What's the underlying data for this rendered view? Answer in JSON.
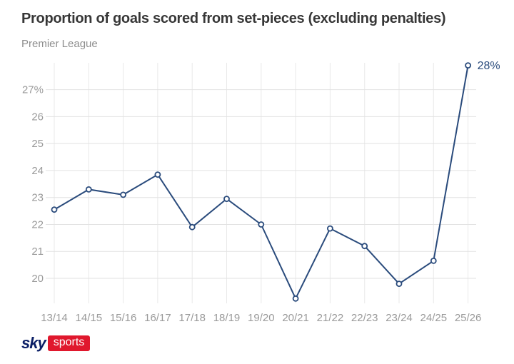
{
  "header": {
    "title": "Proportion of goals scored from set-pieces (excluding penalties)",
    "subtitle": "Premier League"
  },
  "chart_data": {
    "type": "line",
    "title": "Proportion of goals scored from set-pieces (excluding penalties)",
    "subtitle": "Premier League",
    "categories": [
      "13/14",
      "14/15",
      "15/16",
      "16/17",
      "17/18",
      "18/19",
      "19/20",
      "20/21",
      "21/22",
      "22/23",
      "23/24",
      "24/25",
      "25/26"
    ],
    "values": [
      22.55,
      23.3,
      23.1,
      23.85,
      21.9,
      22.95,
      22.0,
      19.25,
      21.85,
      21.2,
      19.8,
      20.65,
      27.9
    ],
    "y_ticks": [
      {
        "value": 27,
        "label": "27%"
      },
      {
        "value": 26,
        "label": "26"
      },
      {
        "value": 25,
        "label": "25"
      },
      {
        "value": 24,
        "label": "24"
      },
      {
        "value": 23,
        "label": "23"
      },
      {
        "value": 22,
        "label": "22"
      },
      {
        "value": 21,
        "label": "21"
      },
      {
        "value": 20,
        "label": "20"
      }
    ],
    "ylim": [
      19.1,
      28.0
    ],
    "grid": true,
    "legend": "none",
    "annotation": {
      "category": "25/26",
      "label": "28%"
    },
    "line_color": "#2a4b7c",
    "marker_fill": "#ffffff",
    "grid_color_h": "#e2e2e2",
    "grid_color_v": "#e9e9e9",
    "axis_label_color": "#9a9a9a",
    "annotation_color": "#2a4b7c"
  },
  "footer": {
    "logo": {
      "sky": "sky",
      "sports": "sports",
      "sky_color": "#0b1f66",
      "sports_bg": "#e0182d"
    }
  }
}
